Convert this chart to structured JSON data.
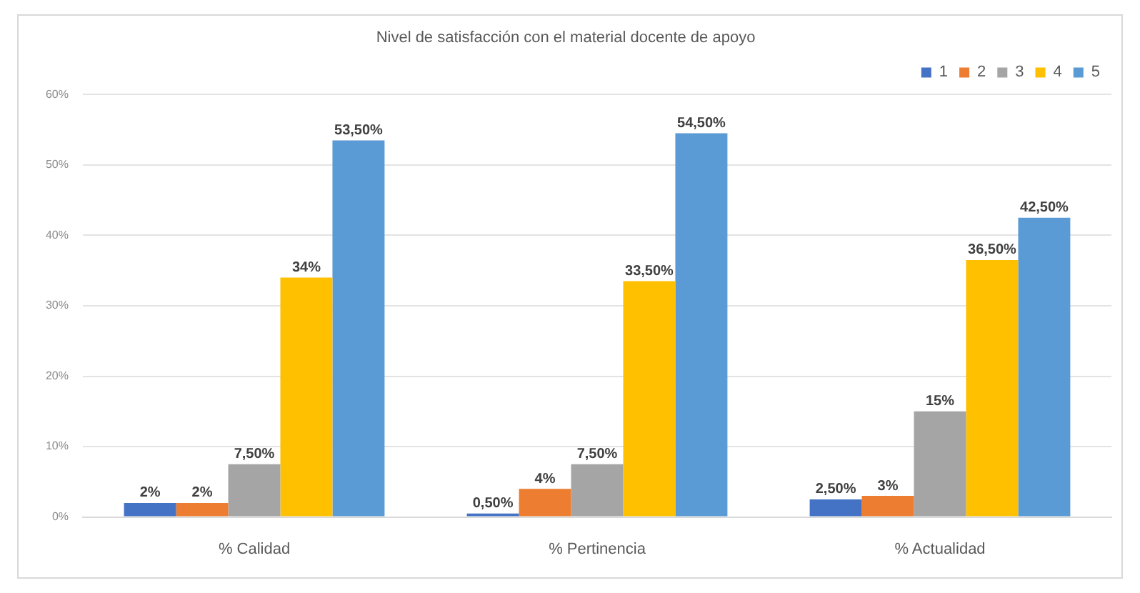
{
  "chart_data": {
    "type": "bar",
    "title": "Nivel de satisfacción con el material docente de apoyo",
    "categories": [
      "% Calidad",
      "% Pertinencia",
      "% Actualidad"
    ],
    "series": [
      {
        "name": "1",
        "color": "#4472c4",
        "values": [
          2,
          0.5,
          2.5
        ],
        "value_labels": [
          "2%",
          "0,50%",
          "2,50%"
        ]
      },
      {
        "name": "2",
        "color": "#ed7d31",
        "values": [
          2,
          4,
          3
        ],
        "value_labels": [
          "2%",
          "4%",
          "3%"
        ]
      },
      {
        "name": "3",
        "color": "#a5a5a5",
        "values": [
          7.5,
          7.5,
          15
        ],
        "value_labels": [
          "7,50%",
          "7,50%",
          "15%"
        ]
      },
      {
        "name": "4",
        "color": "#ffc000",
        "values": [
          34,
          33.5,
          36.5
        ],
        "value_labels": [
          "34%",
          "33,50%",
          "36,50%"
        ]
      },
      {
        "name": "5",
        "color": "#5b9bd5",
        "values": [
          53.5,
          54.5,
          42.5
        ],
        "value_labels": [
          "53,50%",
          "54,50%",
          "42,50%"
        ]
      }
    ],
    "ylim": [
      0,
      60
    ],
    "yticks": [
      {
        "value": 0,
        "label": "0%"
      },
      {
        "value": 10,
        "label": "10%"
      },
      {
        "value": 20,
        "label": "20%"
      },
      {
        "value": 30,
        "label": "30%"
      },
      {
        "value": 40,
        "label": "40%"
      },
      {
        "value": 50,
        "label": "50%"
      },
      {
        "value": 60,
        "label": "60%"
      }
    ],
    "grid": "y",
    "legend": "top right"
  }
}
